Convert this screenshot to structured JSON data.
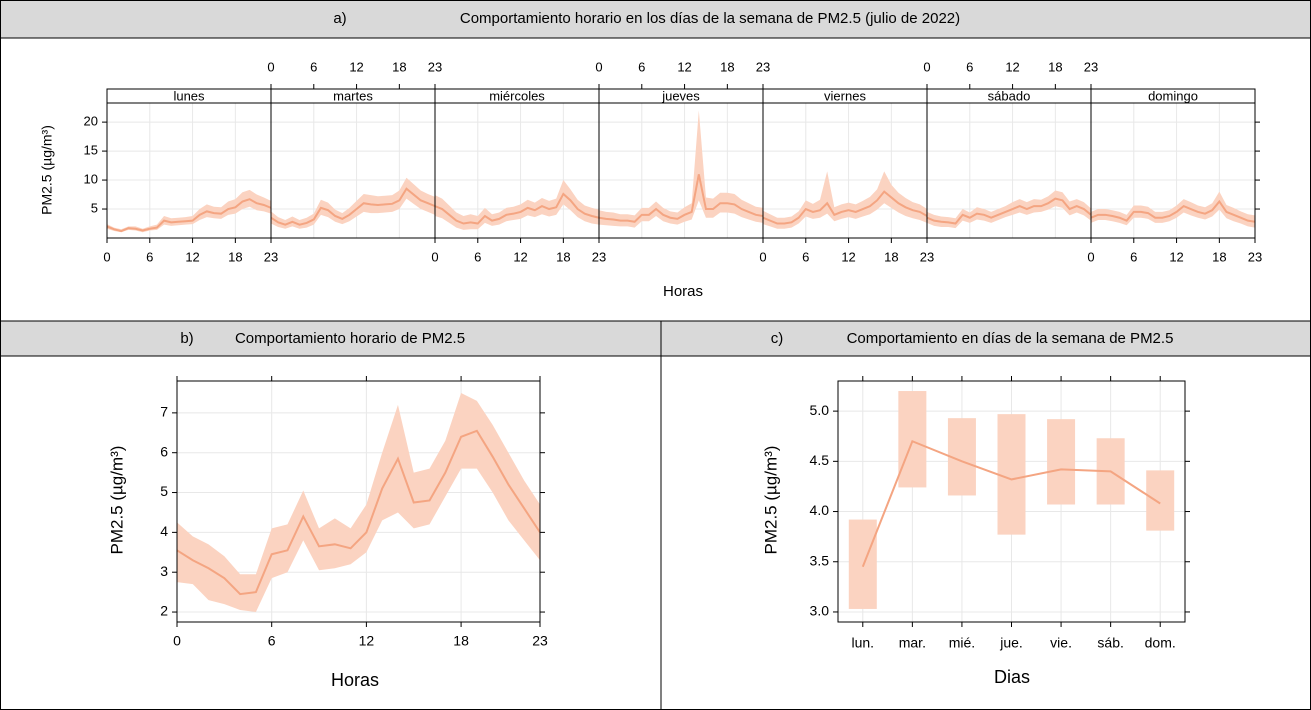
{
  "chart_data": [
    {
      "type": "line",
      "panel": "a)",
      "title": "Comportamiento horario en los días de la semana de PM2.5 (julio de 2022)",
      "xlabel": "Horas",
      "ylabel": "PM2.5 (µg/m³)",
      "color": "#f4a582",
      "band_color": "#fbd3c1",
      "grid": true,
      "x": [
        0,
        1,
        2,
        3,
        4,
        5,
        6,
        7,
        8,
        9,
        10,
        11,
        12,
        13,
        14,
        15,
        16,
        17,
        18,
        19,
        20,
        21,
        22,
        23
      ],
      "xlim": [
        0,
        23
      ],
      "xticks": [
        0,
        6,
        12,
        18,
        23
      ],
      "ylim": [
        0,
        23.3
      ],
      "yticks": [
        5,
        10,
        15,
        20
      ],
      "facets": [
        {
          "name": "lunes",
          "values": [
            2,
            1.5,
            1.2,
            1.7,
            1.6,
            1.3,
            1.6,
            1.8,
            3,
            2.7,
            2.8,
            2.9,
            3,
            4,
            4.6,
            4.3,
            4.2,
            5,
            5.3,
            6.3,
            6.7,
            6,
            5.7,
            5.2
          ],
          "lower": [
            1.6,
            1.2,
            1,
            1.4,
            1.3,
            1,
            1.3,
            1.4,
            2.3,
            2.1,
            2.2,
            2.3,
            2.4,
            3.1,
            3.6,
            3.4,
            3.3,
            4,
            4.2,
            5,
            5.4,
            4.8,
            4.6,
            4.2
          ],
          "upper": [
            2.4,
            1.8,
            1.5,
            2,
            2,
            1.6,
            2,
            2.3,
            3.8,
            3.4,
            3.5,
            3.6,
            3.8,
            5,
            5.8,
            5.4,
            5.3,
            6.3,
            6.7,
            7.9,
            8.3,
            7.5,
            7,
            6.4
          ]
        },
        {
          "name": "martes",
          "values": [
            3.5,
            2.7,
            2.3,
            2.8,
            2.3,
            2.6,
            3.2,
            5.2,
            4.8,
            3.8,
            3.3,
            4,
            5,
            6,
            5.8,
            5.7,
            5.8,
            5.9,
            6.5,
            8.5,
            7.5,
            6.5,
            6,
            5.5
          ],
          "lower": [
            2.5,
            1.9,
            1.6,
            2,
            1.6,
            1.8,
            2.3,
            4,
            3.6,
            2.8,
            2.4,
            2.9,
            3.7,
            4.5,
            4.3,
            4.3,
            4.4,
            4.5,
            5,
            6.8,
            5.9,
            5,
            4.5,
            4
          ],
          "upper": [
            4.6,
            3.6,
            3.1,
            3.7,
            3.1,
            3.5,
            4.2,
            6.6,
            6.1,
            4.9,
            4.3,
            5.2,
            6.4,
            7.6,
            7.4,
            7.2,
            7.3,
            7.4,
            8.2,
            10.4,
            9.3,
            8.2,
            7.6,
            7.1
          ]
        },
        {
          "name": "miércoles",
          "values": [
            5.5,
            5,
            4,
            3,
            2.5,
            2.7,
            2.5,
            3.8,
            3,
            3.3,
            4,
            4.2,
            4.5,
            5.2,
            4.8,
            5.5,
            5,
            5.3,
            7.6,
            6.5,
            5,
            4.2,
            3.8,
            3.5
          ],
          "lower": [
            3.8,
            3.4,
            2.6,
            1.8,
            1.4,
            1.5,
            1.5,
            2.6,
            2.1,
            2.3,
            2.9,
            3.1,
            3.3,
            3.9,
            3.6,
            4.1,
            3.7,
            4,
            5.8,
            4.8,
            3.6,
            2.9,
            2.5,
            2.3
          ],
          "upper": [
            7.4,
            6.8,
            5.6,
            4.4,
            3.8,
            4.1,
            3.8,
            5.2,
            4.1,
            4.4,
            5.2,
            5.4,
            5.8,
            6.6,
            6.1,
            6.9,
            6.4,
            6.8,
            10,
            8.4,
            6.6,
            5.6,
            5.2,
            4.9
          ]
        },
        {
          "name": "jueves",
          "values": [
            3.5,
            3.3,
            3.2,
            3,
            3,
            2.8,
            4,
            4,
            5,
            4,
            3.5,
            3.3,
            4,
            4.5,
            11,
            5,
            5,
            6,
            6,
            5.8,
            5,
            4.5,
            4,
            3.8
          ],
          "lower": [
            2.3,
            2.2,
            2.1,
            2,
            2,
            1.8,
            2.9,
            2.9,
            3.8,
            2.9,
            2.5,
            2.3,
            2.8,
            3.2,
            6.5,
            3.5,
            3.5,
            4.4,
            4.4,
            4.2,
            3.6,
            3.2,
            2.8,
            2.6
          ],
          "upper": [
            4.8,
            4.5,
            4.4,
            4.1,
            4.1,
            3.9,
            5.2,
            5.2,
            6.3,
            5.2,
            4.6,
            4.4,
            5.3,
            6,
            22,
            7,
            6.8,
            7.8,
            7.8,
            7.6,
            6.6,
            6,
            5.4,
            5.2
          ]
        },
        {
          "name": "viernes",
          "values": [
            3.5,
            3,
            2.5,
            2.5,
            2.7,
            3.5,
            5,
            4.5,
            4.8,
            6,
            4,
            4.5,
            4.8,
            4.5,
            5,
            5.5,
            6.5,
            8,
            7,
            6,
            5.3,
            4.8,
            4.5,
            3.8
          ],
          "lower": [
            2.4,
            2,
            1.6,
            1.6,
            1.8,
            2.5,
            3.7,
            3.3,
            3.5,
            4.2,
            2.9,
            3.3,
            3.6,
            3.3,
            3.7,
            4.1,
            4.9,
            6,
            5.2,
            4.4,
            3.8,
            3.4,
            3.1,
            2.6
          ],
          "upper": [
            4.7,
            4.1,
            3.5,
            3.5,
            3.7,
            4.6,
            6.5,
            5.9,
            6.6,
            11.5,
            5.3,
            5.8,
            6.1,
            5.8,
            6.4,
            7.1,
            8.4,
            11.5,
            9.2,
            7.8,
            6.9,
            6.2,
            5.8,
            5
          ]
        },
        {
          "name": "sábado",
          "values": [
            3.5,
            3,
            2.8,
            2.7,
            2.5,
            4,
            3.5,
            4.2,
            4,
            3.5,
            4,
            4.5,
            5,
            5.5,
            5,
            5.5,
            5.5,
            6,
            6.8,
            6.5,
            5,
            5.5,
            5,
            4
          ],
          "lower": [
            2.6,
            2.1,
            1.9,
            1.9,
            1.7,
            3,
            2.6,
            3.2,
            3,
            2.6,
            3.1,
            3.6,
            4,
            4.4,
            4,
            4.4,
            4.5,
            4.9,
            5.5,
            5.2,
            3.9,
            4.4,
            3.9,
            3
          ],
          "upper": [
            4.5,
            4,
            3.7,
            3.6,
            3.4,
            5,
            4.4,
            5.3,
            5,
            4.5,
            5,
            5.5,
            6.2,
            6.7,
            6.2,
            6.7,
            6.6,
            7.2,
            8.2,
            7.9,
            6.3,
            6.7,
            6.2,
            5.1
          ]
        },
        {
          "name": "domingo",
          "values": [
            3.5,
            4,
            4,
            3.8,
            3.5,
            3,
            4.5,
            4.5,
            4.3,
            3.5,
            3.5,
            3.8,
            4.5,
            5.5,
            5,
            4.5,
            4.2,
            4.8,
            6.3,
            4.5,
            4,
            3.5,
            3,
            2.8
          ],
          "lower": [
            2.6,
            3.1,
            3.1,
            2.9,
            2.6,
            2.2,
            3.5,
            3.5,
            3.3,
            2.6,
            2.6,
            2.9,
            3.5,
            4.4,
            3.9,
            3.5,
            3.2,
            3.7,
            4.9,
            3.4,
            2.9,
            2.5,
            2,
            1.8
          ],
          "upper": [
            4.5,
            5,
            5,
            4.8,
            4.5,
            4,
            5.6,
            5.6,
            5.4,
            4.5,
            4.5,
            4.8,
            5.6,
            6.7,
            6.2,
            5.6,
            5.3,
            6,
            8,
            5.7,
            5.2,
            4.6,
            4.1,
            3.9
          ]
        }
      ]
    },
    {
      "type": "line",
      "panel": "b)",
      "title": "Comportamiento horario de PM2.5",
      "xlabel": "Horas",
      "ylabel": "PM2.5 (µg/m³)",
      "color": "#f4a582",
      "band_color": "#fbd3c1",
      "grid": true,
      "x": [
        0,
        1,
        2,
        3,
        4,
        5,
        6,
        7,
        8,
        9,
        10,
        11,
        12,
        13,
        14,
        15,
        16,
        17,
        18,
        19,
        20,
        21,
        22,
        23
      ],
      "xlim": [
        0,
        23
      ],
      "xticks": [
        0,
        6,
        12,
        18,
        23
      ],
      "ylim": [
        1.75,
        7.8
      ],
      "yticks": [
        2,
        3,
        4,
        5,
        6,
        7
      ],
      "values": [
        3.55,
        3.3,
        3.1,
        2.85,
        2.45,
        2.5,
        3.45,
        3.55,
        4.4,
        3.65,
        3.7,
        3.6,
        4,
        5.1,
        5.85,
        4.75,
        4.8,
        5.5,
        6.4,
        6.55,
        5.9,
        5.2,
        4.6,
        4
      ],
      "lower": [
        2.75,
        2.7,
        2.3,
        2.2,
        2.05,
        2,
        2.85,
        3,
        3.8,
        3.05,
        3.1,
        3.2,
        3.5,
        4.3,
        4.5,
        4.1,
        4.2,
        4.9,
        5.6,
        5.6,
        5,
        4.3,
        3.8,
        3.3
      ],
      "upper": [
        4.25,
        3.9,
        3.7,
        3.4,
        2.95,
        2.95,
        4.1,
        4.2,
        5.05,
        4.1,
        4.35,
        4.1,
        4.7,
        6,
        7.2,
        5.5,
        5.6,
        6.3,
        7.5,
        7.3,
        6.7,
        6,
        5.3,
        4.7
      ]
    },
    {
      "type": "line",
      "panel": "c)",
      "title": "Comportamiento en días de la semana de PM2.5",
      "xlabel": "Dias",
      "ylabel": "PM2.5 (µg/m³)",
      "color": "#f4a582",
      "band_color": "#fbd3c1",
      "grid": true,
      "categories": [
        "lun.",
        "mar.",
        "mié.",
        "jue.",
        "vie.",
        "sáb.",
        "dom."
      ],
      "ylim": [
        2.9,
        5.3
      ],
      "yticks": [
        {
          "value": 3,
          "label": "3.0"
        },
        3.5,
        {
          "value": 4,
          "label": "4.0"
        },
        4.5,
        {
          "value": 5,
          "label": "5.0"
        }
      ],
      "values": [
        3.45,
        4.7,
        4.5,
        4.32,
        4.42,
        4.4,
        4.08
      ],
      "lower": [
        3.03,
        4.24,
        4.16,
        3.77,
        4.07,
        4.07,
        3.81
      ],
      "upper": [
        3.92,
        5.2,
        4.93,
        4.97,
        4.92,
        4.73,
        4.41
      ]
    }
  ]
}
